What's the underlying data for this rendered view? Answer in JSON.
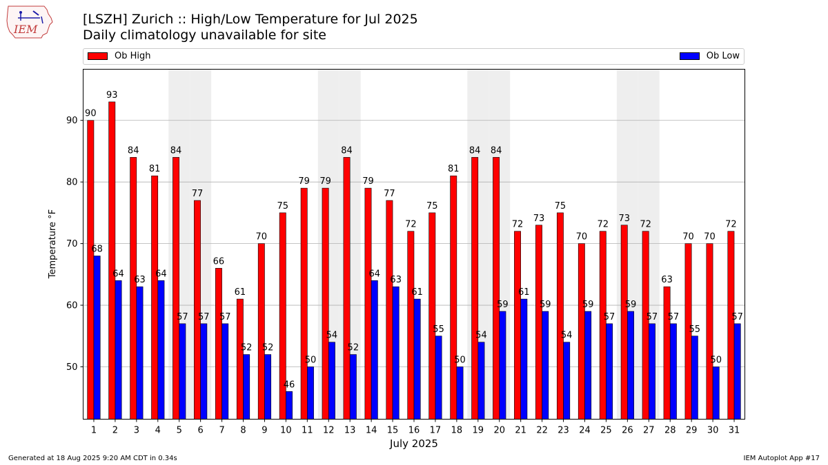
{
  "logo": {
    "text": "IEM"
  },
  "title": {
    "line1": "[LSZH] Zurich :: High/Low Temperature for Jul 2025",
    "line2": "Daily climatology unavailable for site"
  },
  "legend": {
    "high_label": "Ob High",
    "low_label": "Ob Low"
  },
  "footer": {
    "left": "Generated at 18 Aug 2025 9:20 AM CDT in 0.34s",
    "right": "IEM Autoplot App #17"
  },
  "colors": {
    "high": "#ff0000",
    "low": "#0000ff",
    "weekend_band": "#eeeeee",
    "grid": "#b0b0b0"
  },
  "chart_data": {
    "type": "bar",
    "title": "[LSZH] Zurich :: High/Low Temperature for Jul 2025",
    "subtitle": "Daily climatology unavailable for site",
    "xlabel": "July 2025",
    "ylabel": "Temperature °F",
    "categories": [
      "1",
      "2",
      "3",
      "4",
      "5",
      "6",
      "7",
      "8",
      "9",
      "10",
      "11",
      "12",
      "13",
      "14",
      "15",
      "16",
      "17",
      "18",
      "19",
      "20",
      "21",
      "22",
      "23",
      "24",
      "25",
      "26",
      "27",
      "28",
      "29",
      "30",
      "31"
    ],
    "series": [
      {
        "name": "Ob High",
        "values": [
          90,
          93,
          84,
          81,
          84,
          77,
          66,
          61,
          70,
          75,
          79,
          79,
          84,
          79,
          77,
          72,
          75,
          81,
          84,
          84,
          72,
          73,
          75,
          70,
          72,
          73,
          72,
          63,
          70,
          70,
          72
        ]
      },
      {
        "name": "Ob Low",
        "values": [
          68,
          64,
          63,
          64,
          57,
          57,
          57,
          52,
          52,
          46,
          50,
          54,
          52,
          64,
          63,
          61,
          55,
          50,
          54,
          59,
          61,
          59,
          54,
          59,
          57,
          59,
          57,
          57,
          55,
          50,
          57
        ]
      }
    ],
    "shaded_days": [
      5,
      6,
      12,
      13,
      19,
      20,
      26,
      27
    ],
    "yticks": [
      50,
      60,
      70,
      80,
      90
    ],
    "ylim": [
      41.5,
      98.3
    ],
    "grid": true,
    "legend_position": "top"
  }
}
